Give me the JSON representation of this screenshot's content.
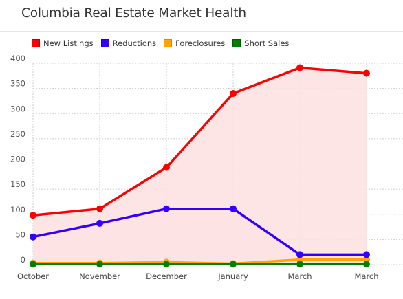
{
  "title": "Columbia Real Estate Market Health",
  "colors": {
    "new_listings": "#ff0000",
    "reductions": "#3300ff",
    "foreclosures": "#ffa500",
    "short_sales": "#008000",
    "fill": "#fde2e2",
    "grid": "#cccccc"
  },
  "chart_data": {
    "type": "line",
    "title": "Columbia Real Estate Market Health",
    "xlabel": "",
    "ylabel": "",
    "ylim": [
      0,
      400
    ],
    "yticks": [
      "0",
      "50",
      "100",
      "150",
      "200",
      "250",
      "300",
      "350",
      "400"
    ],
    "categories": [
      "October",
      "November",
      "December",
      "January",
      "March",
      "March"
    ],
    "grid": "dotted",
    "legend_position": "top-left",
    "series": [
      {
        "name": "New Listings",
        "color": "#ff0000",
        "values": [
          98,
          111,
          193,
          340,
          391,
          380
        ]
      },
      {
        "name": "Reductions",
        "color": "#3300ff",
        "values": [
          55,
          82,
          111,
          111,
          20,
          20
        ]
      },
      {
        "name": "Foreclosures",
        "color": "#ffa500",
        "values": [
          3,
          3,
          5,
          2,
          10,
          10
        ]
      },
      {
        "name": "Short Sales",
        "color": "#008000",
        "values": [
          1,
          1,
          1,
          1,
          1,
          1
        ]
      }
    ]
  }
}
